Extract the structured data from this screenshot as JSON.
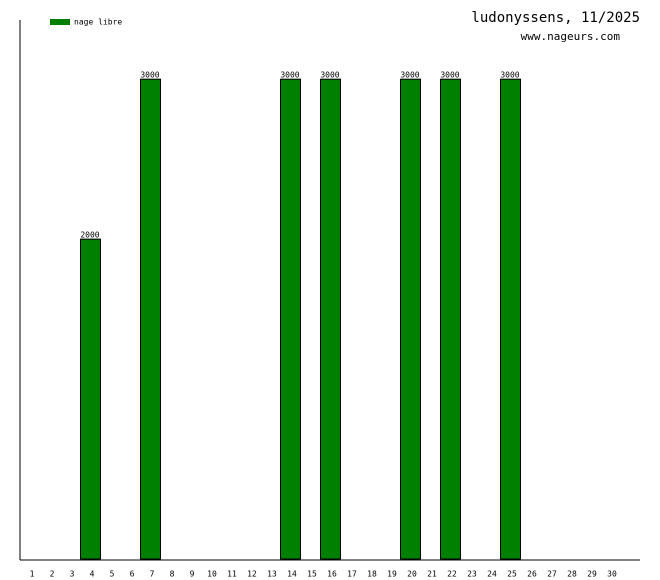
{
  "chart_data": {
    "type": "bar",
    "title": "ludonyssens, 11/2025",
    "subtitle": "www.nageurs.com",
    "categories": [
      "1",
      "2",
      "3",
      "4",
      "5",
      "6",
      "7",
      "8",
      "9",
      "10",
      "11",
      "12",
      "13",
      "14",
      "15",
      "16",
      "17",
      "18",
      "19",
      "20",
      "21",
      "22",
      "23",
      "24",
      "25",
      "26",
      "27",
      "28",
      "29",
      "30"
    ],
    "series": [
      {
        "name": "nage libre",
        "color": "#008000",
        "values": [
          null,
          null,
          null,
          2000,
          null,
          null,
          3000,
          null,
          null,
          null,
          null,
          null,
          null,
          3000,
          null,
          3000,
          null,
          null,
          null,
          3000,
          null,
          3000,
          null,
          null,
          3000,
          null,
          null,
          null,
          null,
          null
        ]
      }
    ],
    "ylim": [
      0,
      3370
    ],
    "legend": "top-left"
  }
}
